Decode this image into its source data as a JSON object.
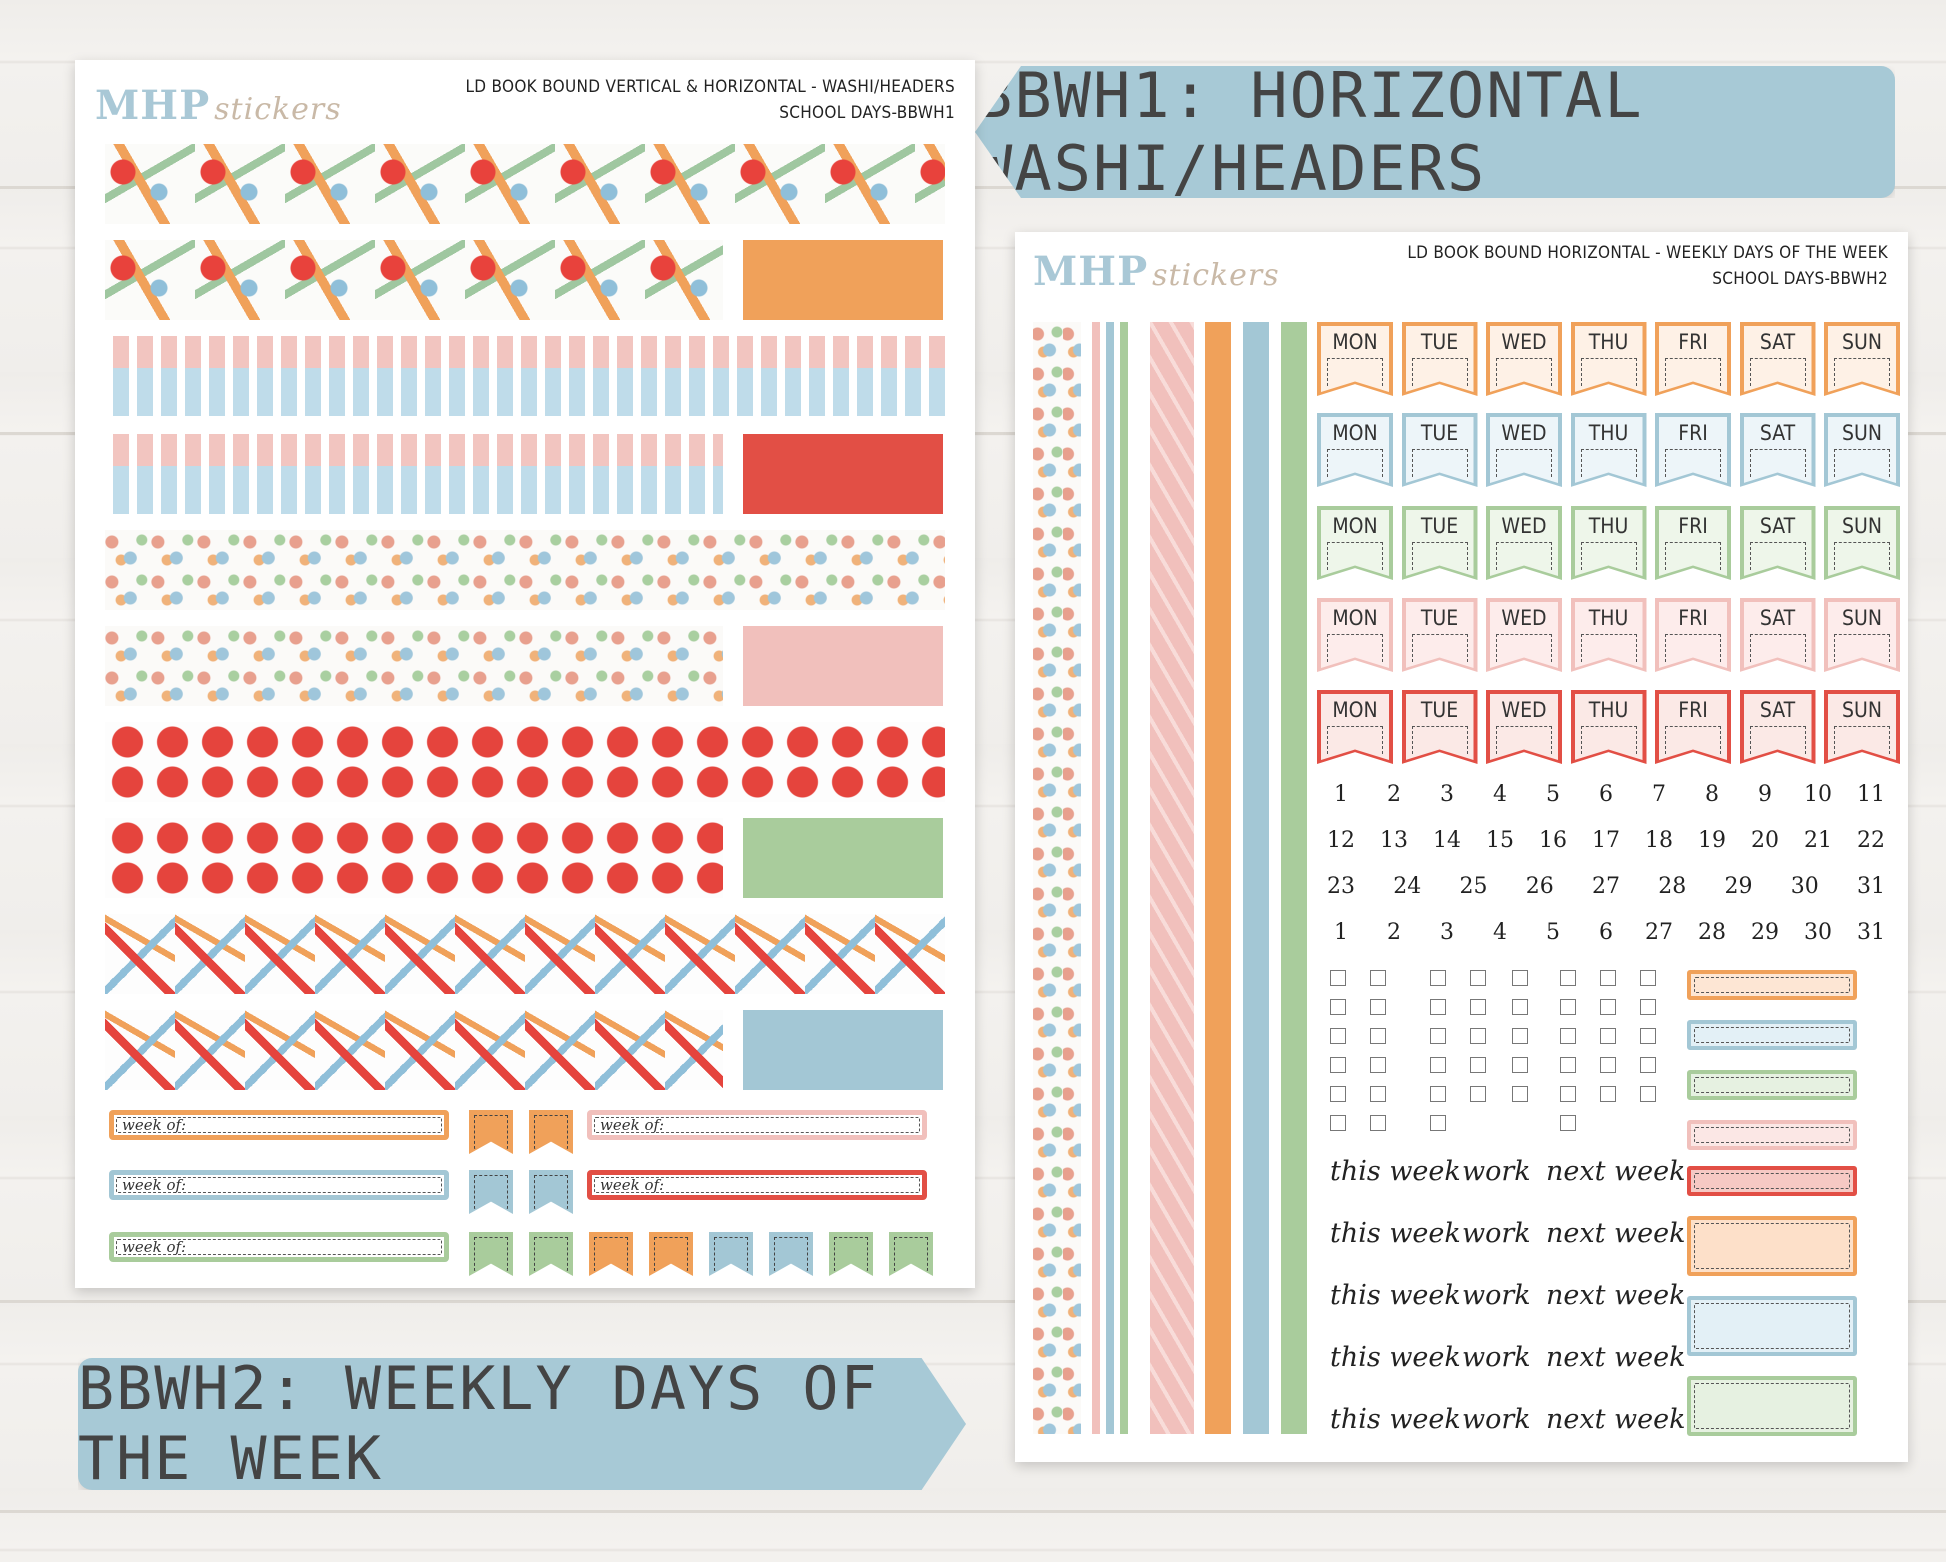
{
  "sheet1": {
    "logo_main": "MHP",
    "logo_sub": "stickers",
    "title_line1": "LD BOOK BOUND VERTICAL & HORIZONTAL - WASHI/HEADERS",
    "title_line2": "SCHOOL DAYS-BBWH1",
    "week_of_label": "week of:"
  },
  "sheet2": {
    "logo_main": "MHP",
    "logo_sub": "stickers",
    "title_line1": "LD BOOK BOUND HORIZONTAL - WEEKLY DAYS OF THE WEEK",
    "title_line2": "SCHOOL DAYS-BBWH2",
    "days": [
      "MON",
      "TUE",
      "WED",
      "THU",
      "FRI",
      "SAT",
      "SUN"
    ],
    "numbers_rows": [
      [
        "1",
        "2",
        "3",
        "4",
        "5",
        "6",
        "7",
        "8",
        "9",
        "10",
        "11"
      ],
      [
        "12",
        "13",
        "14",
        "15",
        "16",
        "17",
        "18",
        "19",
        "20",
        "21",
        "22"
      ],
      [
        "23",
        "24",
        "25",
        "26",
        "27",
        "28",
        "29",
        "30",
        "31"
      ],
      [
        "1",
        "2",
        "3",
        "4",
        "5",
        "6",
        "27",
        "28",
        "29",
        "30",
        "31"
      ]
    ],
    "script_words": [
      "this week",
      "work",
      "next week"
    ]
  },
  "banners": {
    "top": "BBWH1: HORIZONTAL WASHI/HEADERS",
    "bottom": "BBWH2: WEEKLY DAYS OF THE WEEK"
  },
  "colors": {
    "orange": "#f0a15a",
    "red": "#e24f45",
    "pink": "#f1c0bc",
    "green": "#a9cc9c",
    "blue": "#a3c7d5"
  }
}
